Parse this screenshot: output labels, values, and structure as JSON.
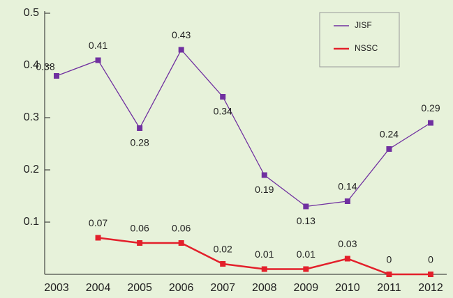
{
  "chart_data": {
    "type": "line",
    "categories": [
      "2003",
      "2004",
      "2005",
      "2006",
      "2007",
      "2008",
      "2009",
      "2010",
      "2011",
      "2012"
    ],
    "series": [
      {
        "name": "JISF",
        "color": "#7030a0",
        "values": [
          0.38,
          0.41,
          0.28,
          0.43,
          0.34,
          0.19,
          0.13,
          0.14,
          0.24,
          0.29
        ]
      },
      {
        "name": "NSSC",
        "color": "#e3202b",
        "values": [
          null,
          0.07,
          0.06,
          0.06,
          0.02,
          0.01,
          0.01,
          0.03,
          0,
          0
        ]
      }
    ],
    "ylim": [
      0,
      0.5
    ],
    "yticks": [
      0.1,
      0.2,
      0.3,
      0.4,
      0.5
    ],
    "legend": "upper right"
  }
}
